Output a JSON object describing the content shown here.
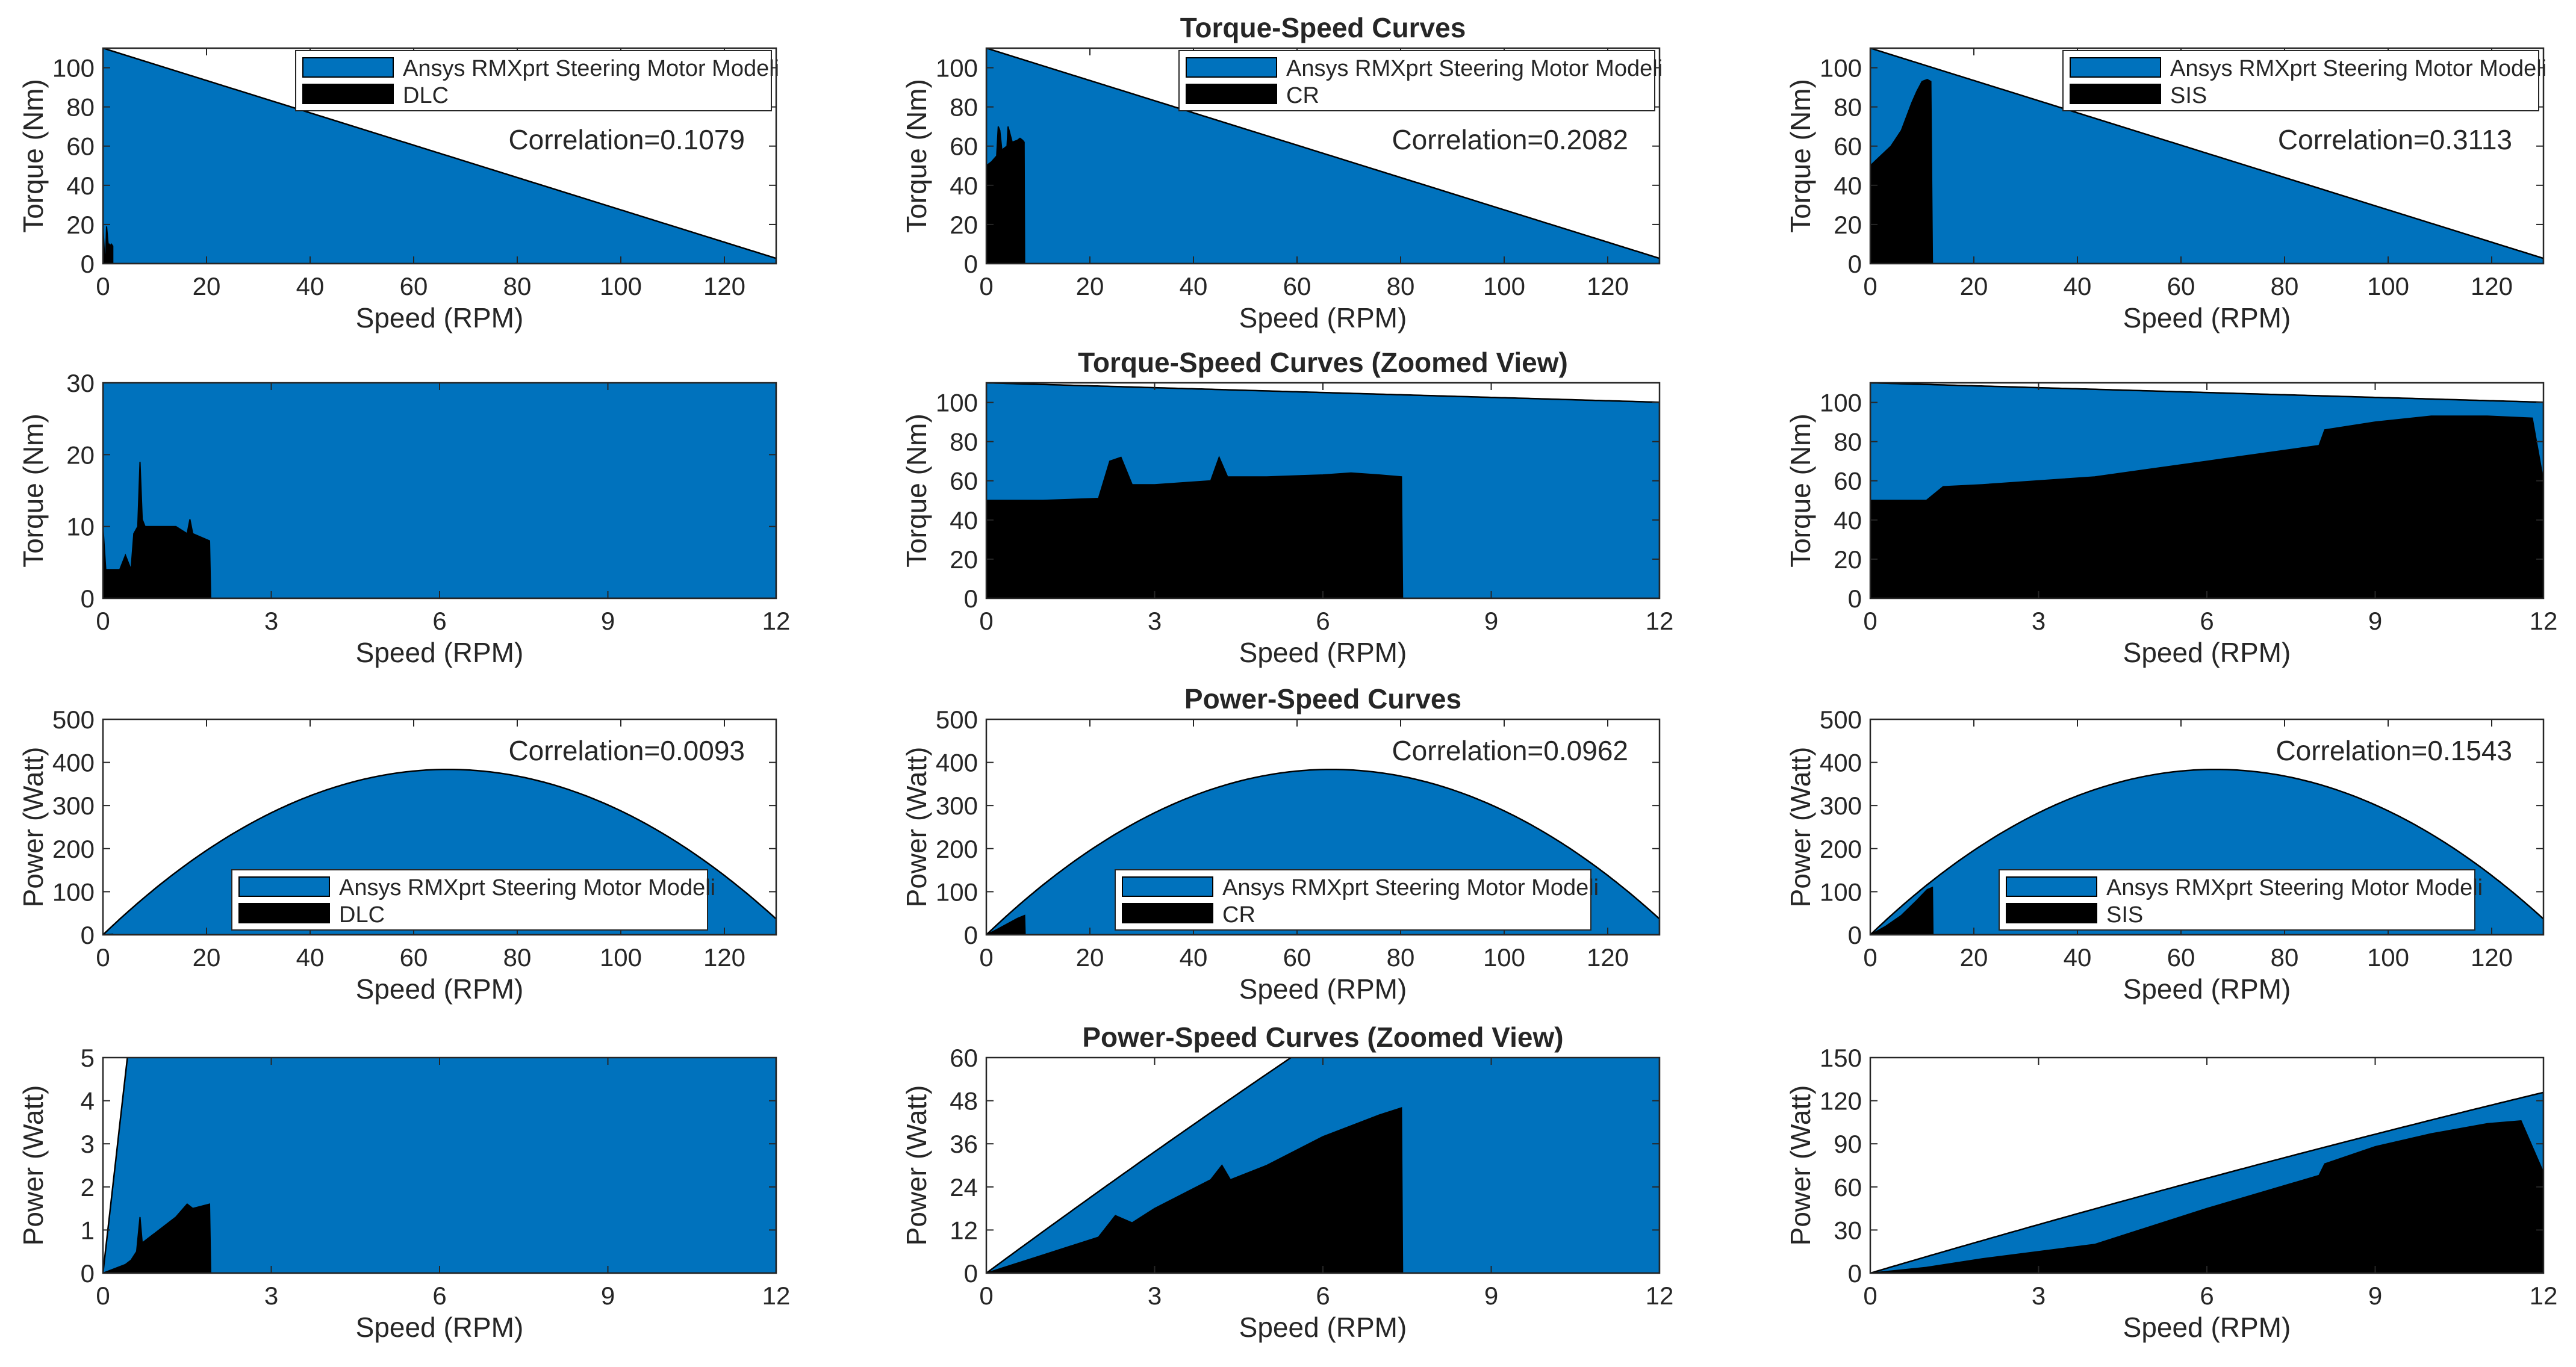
{
  "figure": {
    "row_titles": [
      "Torque-Speed Curves",
      "Torque-Speed Curves (Zoomed View)",
      "Power-Speed Curves",
      "Power-Speed Curves (Zoomed View)"
    ]
  },
  "colors": {
    "model_fill": "#0072BD",
    "measured_fill": "#000000",
    "axis": "#262626"
  },
  "chart_data": [
    {
      "type": "area",
      "row": 0,
      "col": 0,
      "title": "",
      "xlabel": "Speed (RPM)",
      "ylabel": "Torque (Nm)",
      "xlim": [
        0,
        130
      ],
      "ylim": [
        0,
        110
      ],
      "xticks": [
        0,
        20,
        40,
        60,
        80,
        100,
        120
      ],
      "yticks": [
        0,
        20,
        40,
        60,
        80,
        100
      ],
      "model": {
        "name": "Ansys RMXprt Steering Motor Modeli",
        "kind": "torque_line",
        "t0": 110,
        "slope": -0.8254
      },
      "measured": {
        "name": "DLC",
        "x": [
          0,
          0.02,
          0.3,
          0.55,
          0.7,
          1.0,
          1.2,
          1.4,
          1.6,
          1.9
        ],
        "y": [
          10,
          18,
          4,
          5,
          19,
          10,
          10,
          9,
          10,
          9
        ]
      },
      "correlation": "Correlation=0.1079",
      "legend": "top-right"
    },
    {
      "type": "area",
      "row": 0,
      "col": 1,
      "title": "Torque-Speed Curves",
      "xlabel": "Speed (RPM)",
      "ylabel": "Torque (Nm)",
      "xlim": [
        0,
        130
      ],
      "ylim": [
        0,
        110
      ],
      "xticks": [
        0,
        20,
        40,
        60,
        80,
        100,
        120
      ],
      "yticks": [
        0,
        20,
        40,
        60,
        80,
        100
      ],
      "model": {
        "name": "Ansys RMXprt Steering Motor Modeli",
        "kind": "torque_line",
        "t0": 110,
        "slope": -0.8254
      },
      "measured": {
        "name": "CR",
        "x": [
          0,
          0.5,
          1,
          2,
          2.3,
          2.6,
          3,
          4,
          4.2,
          5,
          6,
          6.5,
          7,
          7.3,
          7.4
        ],
        "y": [
          50,
          51,
          52,
          55,
          70,
          68,
          58,
          60,
          70,
          62,
          63,
          64,
          63,
          62,
          0
        ]
      },
      "correlation": "Correlation=0.2082",
      "legend": "top-right"
    },
    {
      "type": "area",
      "row": 0,
      "col": 2,
      "title": "",
      "xlabel": "Speed (RPM)",
      "ylabel": "Torque (Nm)",
      "xlim": [
        0,
        130
      ],
      "ylim": [
        0,
        110
      ],
      "xticks": [
        0,
        20,
        40,
        60,
        80,
        100,
        120
      ],
      "yticks": [
        0,
        20,
        40,
        60,
        80,
        100
      ],
      "model": {
        "name": "Ansys RMXprt Steering Motor Modeli",
        "kind": "torque_line",
        "t0": 110,
        "slope": -0.8254
      },
      "measured": {
        "name": "SIS",
        "x": [
          0,
          2,
          4,
          6,
          8,
          9,
          10,
          11,
          11.7,
          12
        ],
        "y": [
          50,
          55,
          60,
          68,
          82,
          88,
          93,
          94,
          93,
          0
        ]
      },
      "correlation": "Correlation=0.3113",
      "legend": "top-right"
    },
    {
      "type": "area",
      "row": 1,
      "col": 0,
      "title": "",
      "xlabel": "Speed (RPM)",
      "ylabel": "Torque (Nm)",
      "xlim": [
        0,
        12
      ],
      "ylim": [
        0,
        30
      ],
      "xticks": [
        0,
        3,
        6,
        9,
        12
      ],
      "yticks": [
        0,
        10,
        20,
        30
      ],
      "model": {
        "name": "Ansys RMXprt Steering Motor Modeli",
        "kind": "torque_line",
        "t0": 110,
        "slope": -0.8254
      },
      "measured": {
        "name": "DLC",
        "x": [
          0,
          0.05,
          0.1,
          0.3,
          0.4,
          0.5,
          0.55,
          0.62,
          0.66,
          0.7,
          0.75,
          0.8,
          1.0,
          1.3,
          1.5,
          1.55,
          1.6,
          1.9,
          1.92
        ],
        "y": [
          10,
          4,
          4,
          4,
          6,
          4,
          9,
          10,
          19,
          11,
          10,
          10,
          10,
          10,
          9,
          11,
          9,
          8,
          0
        ]
      }
    },
    {
      "type": "area",
      "row": 1,
      "col": 1,
      "title": "Torque-Speed Curves (Zoomed View)",
      "xlabel": "Speed (RPM)",
      "ylabel": "Torque (Nm)",
      "xlim": [
        0,
        12
      ],
      "ylim": [
        0,
        110
      ],
      "xticks": [
        0,
        3,
        6,
        9,
        12
      ],
      "yticks": [
        0,
        20,
        40,
        60,
        80,
        100
      ],
      "model": {
        "name": "Ansys RMXprt Steering Motor Modeli",
        "kind": "torque_line",
        "t0": 110,
        "slope": -0.8254
      },
      "measured": {
        "name": "CR",
        "x": [
          0,
          1,
          2,
          2.2,
          2.4,
          2.6,
          3,
          4,
          4.15,
          4.3,
          5,
          6,
          6.5,
          7,
          7.4,
          7.42
        ],
        "y": [
          50,
          50,
          51,
          70,
          72,
          58,
          58,
          60,
          72,
          62,
          62,
          63,
          64,
          63,
          62,
          0
        ]
      }
    },
    {
      "type": "area",
      "row": 1,
      "col": 2,
      "title": "",
      "xlabel": "Speed (RPM)",
      "ylabel": "Torque (Nm)",
      "xlim": [
        0,
        12
      ],
      "ylim": [
        0,
        110
      ],
      "xticks": [
        0,
        3,
        6,
        9,
        12
      ],
      "yticks": [
        0,
        20,
        40,
        60,
        80,
        100
      ],
      "model": {
        "name": "Ansys RMXprt Steering Motor Modeli",
        "kind": "torque_line",
        "t0": 110,
        "slope": -0.8254
      },
      "measured": {
        "name": "SIS",
        "x": [
          0,
          1,
          1.3,
          2,
          4,
          6,
          8,
          8.1,
          9,
          10,
          10.5,
          11,
          11.8,
          12
        ],
        "y": [
          50,
          50,
          57,
          58,
          62,
          70,
          78,
          86,
          90,
          93,
          93,
          93,
          92,
          60
        ]
      }
    },
    {
      "type": "area",
      "row": 2,
      "col": 0,
      "title": "",
      "xlabel": "Speed (RPM)",
      "ylabel": "Power (Watt)",
      "xlim": [
        0,
        130
      ],
      "ylim": [
        0,
        500
      ],
      "xticks": [
        0,
        20,
        40,
        60,
        80,
        100,
        120
      ],
      "yticks": [
        0,
        100,
        200,
        300,
        400,
        500
      ],
      "model": {
        "name": "Ansys RMXprt Steering Motor Modeli",
        "kind": "power_curve",
        "t0": 110,
        "slope": -0.8254
      },
      "measured": {
        "name": "DLC",
        "x": [
          0,
          1,
          1.9,
          2
        ],
        "y": [
          0,
          0.8,
          1.5,
          0
        ]
      },
      "correlation": "Correlation=0.0093",
      "legend": "bottom-center"
    },
    {
      "type": "area",
      "row": 2,
      "col": 1,
      "title": "Power-Speed Curves",
      "xlabel": "Speed (RPM)",
      "ylabel": "Power (Watt)",
      "xlim": [
        0,
        130
      ],
      "ylim": [
        0,
        500
      ],
      "xticks": [
        0,
        20,
        40,
        60,
        80,
        100,
        120
      ],
      "yticks": [
        0,
        100,
        200,
        300,
        400,
        500
      ],
      "model": {
        "name": "Ansys RMXprt Steering Motor Modeli",
        "kind": "power_curve",
        "t0": 110,
        "slope": -0.8254
      },
      "measured": {
        "name": "CR",
        "x": [
          0,
          2,
          4,
          6,
          7.4,
          7.5
        ],
        "y": [
          0,
          12,
          25,
          38,
          45,
          0
        ]
      },
      "correlation": "Correlation=0.0962",
      "legend": "bottom-center"
    },
    {
      "type": "area",
      "row": 2,
      "col": 2,
      "title": "",
      "xlabel": "Speed (RPM)",
      "ylabel": "Power (Watt)",
      "xlim": [
        0,
        130
      ],
      "ylim": [
        0,
        500
      ],
      "xticks": [
        0,
        20,
        40,
        60,
        80,
        100,
        120
      ],
      "yticks": [
        0,
        100,
        200,
        300,
        400,
        500
      ],
      "model": {
        "name": "Ansys RMXprt Steering Motor Modeli",
        "kind": "power_curve",
        "t0": 110,
        "slope": -0.8254
      },
      "measured": {
        "name": "SIS",
        "x": [
          0,
          3,
          6,
          9,
          11,
          12,
          12.1
        ],
        "y": [
          0,
          20,
          45,
          80,
          105,
          110,
          0
        ]
      },
      "correlation": "Correlation=0.1543",
      "legend": "bottom-center"
    },
    {
      "type": "area",
      "row": 3,
      "col": 0,
      "title": "",
      "xlabel": "Speed (RPM)",
      "ylabel": "Power (Watt)",
      "xlim": [
        0,
        12
      ],
      "ylim": [
        0,
        5
      ],
      "xticks": [
        0,
        3,
        6,
        9,
        12
      ],
      "yticks": [
        0,
        1,
        2,
        3,
        4,
        5
      ],
      "model": {
        "name": "Ansys RMXprt Steering Motor Modeli",
        "kind": "power_curve",
        "t0": 110,
        "slope": -0.8254
      },
      "measured": {
        "name": "DLC",
        "x": [
          0,
          0.1,
          0.4,
          0.5,
          0.6,
          0.66,
          0.7,
          0.8,
          1.0,
          1.3,
          1.5,
          1.6,
          1.9,
          1.92
        ],
        "y": [
          0,
          0.05,
          0.2,
          0.3,
          0.5,
          1.3,
          0.7,
          0.8,
          1.0,
          1.3,
          1.6,
          1.5,
          1.6,
          0
        ]
      }
    },
    {
      "type": "area",
      "row": 3,
      "col": 1,
      "title": "Power-Speed Curves (Zoomed View)",
      "xlabel": "Speed (RPM)",
      "ylabel": "Power (Watt)",
      "xlim": [
        0,
        12
      ],
      "ylim": [
        0,
        60
      ],
      "xticks": [
        0,
        3,
        6,
        9,
        12
      ],
      "yticks": [
        0,
        12,
        24,
        36,
        48,
        60
      ],
      "model": {
        "name": "Ansys RMXprt Steering Motor Modeli",
        "kind": "power_curve",
        "t0": 110,
        "slope": -0.8254
      },
      "measured": {
        "name": "CR",
        "x": [
          0,
          1,
          2,
          2.3,
          2.6,
          3,
          4,
          4.2,
          4.35,
          5,
          6,
          6.5,
          7,
          7.4,
          7.42
        ],
        "y": [
          0,
          5,
          10,
          16,
          14,
          18,
          26,
          30,
          26,
          30,
          38,
          41,
          44,
          46,
          0
        ]
      }
    },
    {
      "type": "area",
      "row": 3,
      "col": 2,
      "title": "",
      "xlabel": "Speed (RPM)",
      "ylabel": "Power (Watt)",
      "xlim": [
        0,
        12
      ],
      "ylim": [
        0,
        150
      ],
      "xticks": [
        0,
        3,
        6,
        9,
        12
      ],
      "yticks": [
        0,
        30,
        60,
        90,
        120,
        150
      ],
      "model": {
        "name": "Ansys RMXprt Steering Motor Modeli",
        "kind": "power_curve",
        "t0": 110,
        "slope": -0.8254
      },
      "measured": {
        "name": "SIS",
        "x": [
          0,
          1,
          2,
          4,
          6,
          8,
          8.1,
          9,
          10,
          11,
          11.6,
          12
        ],
        "y": [
          0,
          4,
          10,
          20,
          45,
          68,
          76,
          88,
          97,
          104,
          106,
          70
        ]
      }
    }
  ]
}
